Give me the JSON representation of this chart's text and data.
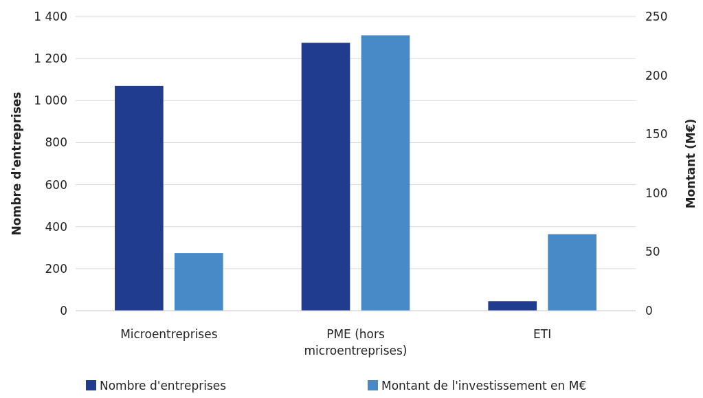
{
  "chart_data": {
    "type": "bar",
    "ylabel": "Nombre d'entreprises",
    "y2label": "Montant (M€)",
    "categories": [
      "Microentreprises",
      "PME (hors microentreprises)",
      "ETI"
    ],
    "series": [
      {
        "name": "Nombre d'entreprises",
        "color": "#1f3c8f",
        "values": [
          1070,
          1275,
          45
        ]
      },
      {
        "name": "Montant de l'investissement en M€",
        "color": "#4889c8",
        "values": [
          49,
          234,
          65
        ],
        "axis": "y2"
      }
    ],
    "ylim": [
      0,
      1400
    ],
    "yticks": [
      0,
      {
        "value": 200,
        "label": "200"
      },
      {
        "value": 400,
        "label": "400"
      },
      {
        "value": 600,
        "label": "600"
      },
      {
        "value": 800,
        "label": "800"
      },
      {
        "value": 1000,
        "label": "1 000"
      },
      {
        "value": 1200,
        "label": "1 200"
      },
      {
        "value": 1400,
        "label": "1 400"
      }
    ],
    "y2lim": [
      0,
      250
    ],
    "y2ticks": [
      0,
      50,
      100,
      150,
      200,
      250
    ],
    "grid": "y",
    "legend": "bottom"
  }
}
